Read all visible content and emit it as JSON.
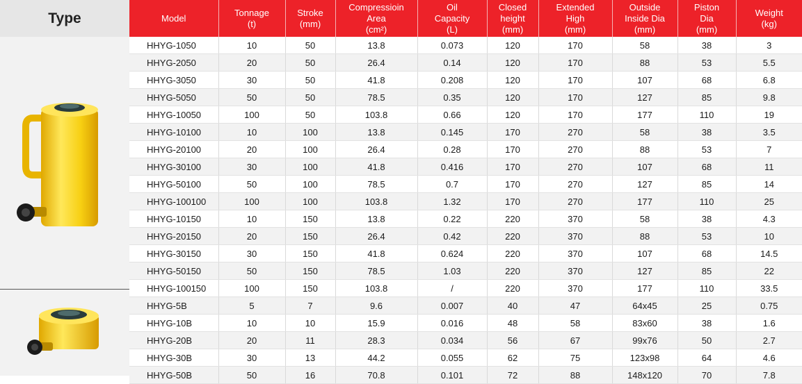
{
  "type_header": "Type",
  "colors": {
    "header_red": "#ed2229",
    "cylinder_yellow": "#f5d41c"
  },
  "columns": [
    {
      "lines": [
        "Model"
      ]
    },
    {
      "lines": [
        "Tonnage",
        "(t)"
      ]
    },
    {
      "lines": [
        "Stroke",
        "(mm)"
      ]
    },
    {
      "lines": [
        "Compressioin",
        "Area",
        "(cm²)"
      ]
    },
    {
      "lines": [
        "Oil",
        "Capacity",
        "(L)"
      ]
    },
    {
      "lines": [
        "Closed",
        "height",
        "(mm)"
      ]
    },
    {
      "lines": [
        "Extended",
        "High",
        "(mm)"
      ]
    },
    {
      "lines": [
        "Outside",
        "Inside Dia",
        "(mm)"
      ]
    },
    {
      "lines": [
        "Piston",
        "Dia",
        "(mm)"
      ]
    },
    {
      "lines": [
        "Weight",
        "(kg)"
      ]
    }
  ],
  "rows": [
    [
      "HHYG-1050",
      "10",
      "50",
      "13.8",
      "0.073",
      "120",
      "170",
      "58",
      "38",
      "3"
    ],
    [
      "HHYG-2050",
      "20",
      "50",
      "26.4",
      "0.14",
      "120",
      "170",
      "88",
      "53",
      "5.5"
    ],
    [
      "HHYG-3050",
      "30",
      "50",
      "41.8",
      "0.208",
      "120",
      "170",
      "107",
      "68",
      "6.8"
    ],
    [
      "HHYG-5050",
      "50",
      "50",
      "78.5",
      "0.35",
      "120",
      "170",
      "127",
      "85",
      "9.8"
    ],
    [
      "HHYG-10050",
      "100",
      "50",
      "103.8",
      "0.66",
      "120",
      "170",
      "177",
      "110",
      "19"
    ],
    [
      "HHYG-10100",
      "10",
      "100",
      "13.8",
      "0.145",
      "170",
      "270",
      "58",
      "38",
      "3.5"
    ],
    [
      "HHYG-20100",
      "20",
      "100",
      "26.4",
      "0.28",
      "170",
      "270",
      "88",
      "53",
      "7"
    ],
    [
      "HHYG-30100",
      "30",
      "100",
      "41.8",
      "0.416",
      "170",
      "270",
      "107",
      "68",
      "11"
    ],
    [
      "HHYG-50100",
      "50",
      "100",
      "78.5",
      "0.7",
      "170",
      "270",
      "127",
      "85",
      "14"
    ],
    [
      "HHYG-100100",
      "100",
      "100",
      "103.8",
      "1.32",
      "170",
      "270",
      "177",
      "110",
      "25"
    ],
    [
      "HHYG-10150",
      "10",
      "150",
      "13.8",
      "0.22",
      "220",
      "370",
      "58",
      "38",
      "4.3"
    ],
    [
      "HHYG-20150",
      "20",
      "150",
      "26.4",
      "0.42",
      "220",
      "370",
      "88",
      "53",
      "10"
    ],
    [
      "HHYG-30150",
      "30",
      "150",
      "41.8",
      "0.624",
      "220",
      "370",
      "107",
      "68",
      "14.5"
    ],
    [
      "HHYG-50150",
      "50",
      "150",
      "78.5",
      "1.03",
      "220",
      "370",
      "127",
      "85",
      "22"
    ],
    [
      "HHYG-100150",
      "100",
      "150",
      "103.8",
      "/",
      "220",
      "370",
      "177",
      "110",
      "33.5"
    ],
    [
      "HHYG-5B",
      "5",
      "7",
      "9.6",
      "0.007",
      "40",
      "47",
      "64x45",
      "25",
      "0.75"
    ],
    [
      "HHYG-10B",
      "10",
      "10",
      "15.9",
      "0.016",
      "48",
      "58",
      "83x60",
      "38",
      "1.6"
    ],
    [
      "HHYG-20B",
      "20",
      "11",
      "28.3",
      "0.034",
      "56",
      "67",
      "99x76",
      "50",
      "2.7"
    ],
    [
      "HHYG-30B",
      "30",
      "13",
      "44.2",
      "0.055",
      "62",
      "75",
      "123x98",
      "64",
      "4.6"
    ],
    [
      "HHYG-50B",
      "50",
      "16",
      "70.8",
      "0.101",
      "72",
      "88",
      "148x120",
      "70",
      "7.8"
    ]
  ],
  "group_start_row": 15,
  "images": [
    {
      "name": "long-stroke-cylinder-image"
    },
    {
      "name": "low-height-cylinder-image"
    }
  ]
}
